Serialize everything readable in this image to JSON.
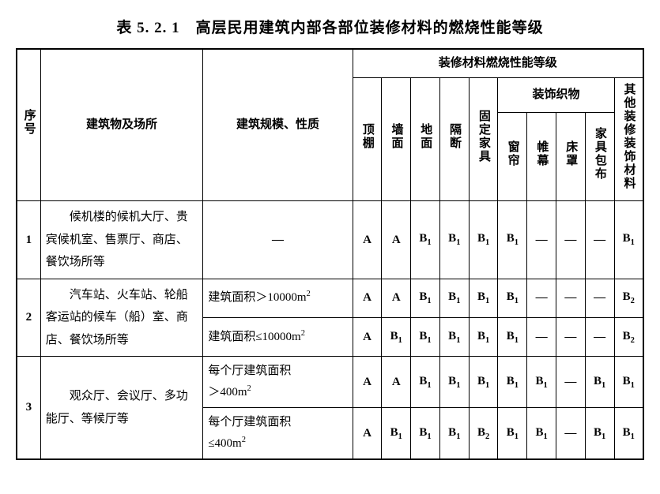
{
  "title": "表 5. 2. 1　高层民用建筑内部各部位装修材料的燃烧性能等级",
  "header": {
    "seq": "序号",
    "building": "建筑物及场所",
    "scale": "建筑规模、性质",
    "group": "装修材料燃烧性能等级",
    "fabric_group": "装饰织物",
    "cols": {
      "c0": "顶棚",
      "c1": "墙面",
      "c2": "地面",
      "c3": "隔断",
      "c4": "固定家具",
      "c5": "窗帘",
      "c6": "帷幕",
      "c7": "床罩",
      "c8": "家具包布",
      "c9": "其他装修装饰材料"
    }
  },
  "grades": {
    "A": "A",
    "B1_pre": "B",
    "B1_sub": "1",
    "B2_pre": "B",
    "B2_sub": "2",
    "dash": "—"
  },
  "rows": [
    {
      "seq": "1",
      "building": "候机楼的候机大厅、贵宾候机室、售票厅、商店、餐饮场所等",
      "scale_plain": "—",
      "cells": [
        "A",
        "A",
        "B1",
        "B1",
        "B1",
        "B1",
        "—",
        "—",
        "—",
        "B1"
      ]
    },
    {
      "seq": "2",
      "building": "汽车站、火车站、轮船客运站的候车（船）室、商店、餐饮场所等",
      "sub": [
        {
          "scale_pre": "建筑面积＞10000m",
          "scale_sup": "2",
          "cells": [
            "A",
            "A",
            "B1",
            "B1",
            "B1",
            "B1",
            "—",
            "—",
            "—",
            "B2"
          ]
        },
        {
          "scale_pre": "建筑面积≤10000m",
          "scale_sup": "2",
          "cells": [
            "A",
            "B1",
            "B1",
            "B1",
            "B1",
            "B1",
            "—",
            "—",
            "—",
            "B2"
          ]
        }
      ]
    },
    {
      "seq": "3",
      "building": "观众厅、会议厅、多功能厅、等候厅等",
      "sub": [
        {
          "scale_line1": "每个厅建筑面积",
          "scale_line2_pre": "＞400m",
          "scale_sup": "2",
          "cells": [
            "A",
            "A",
            "B1",
            "B1",
            "B1",
            "B1",
            "B1",
            "—",
            "B1",
            "B1"
          ]
        },
        {
          "scale_line1": "每个厅建筑面积",
          "scale_line2_pre": "≤400m",
          "scale_sup": "2",
          "cells": [
            "A",
            "B1",
            "B1",
            "B1",
            "B2",
            "B1",
            "B1",
            "—",
            "B1",
            "B1"
          ]
        }
      ]
    }
  ]
}
